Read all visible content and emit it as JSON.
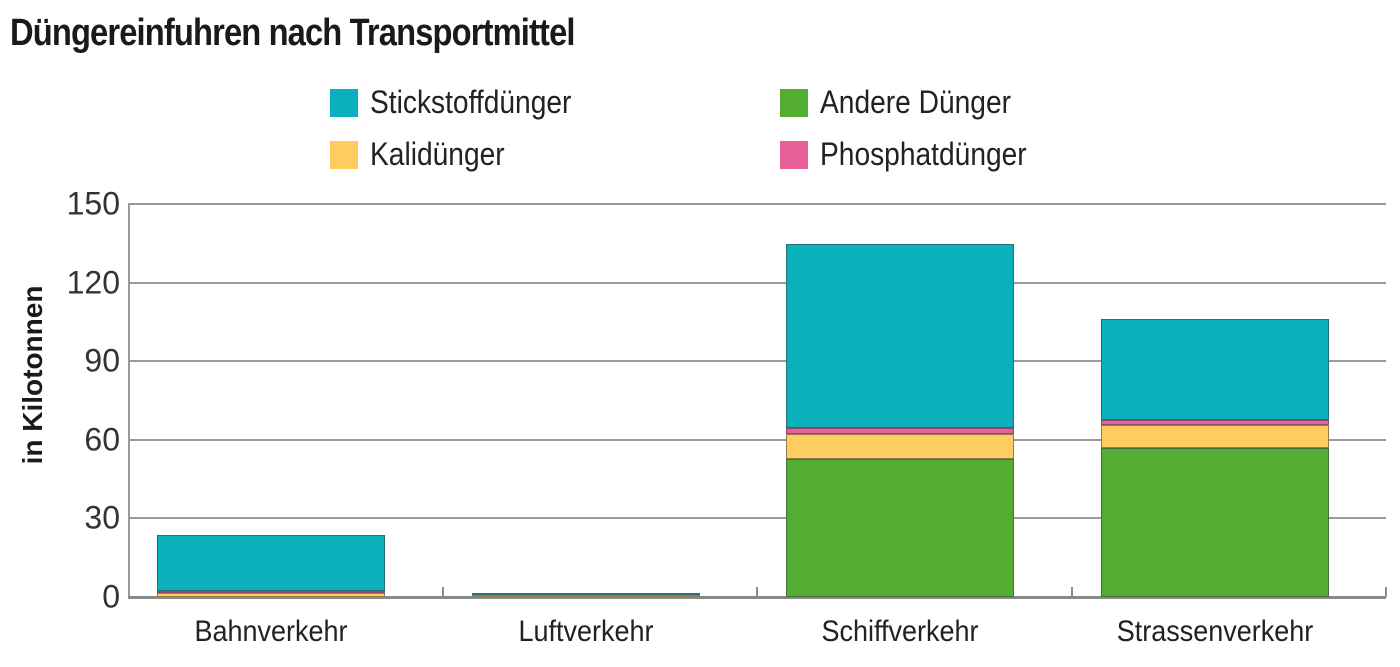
{
  "chart_data": {
    "type": "bar",
    "stacked": true,
    "title": "Düngereinfuhren nach Transportmittel",
    "xlabel": "",
    "ylabel": "in Kilotonnen",
    "ylim": [
      0,
      150
    ],
    "yticks": [
      0,
      30,
      60,
      90,
      120,
      150
    ],
    "grid": true,
    "legend_position": "top",
    "categories": [
      "Bahnverkehr",
      "Luftverkehr",
      "Schiffverkehr",
      "Strassenverkehr"
    ],
    "series": [
      {
        "name": "Andere Dünger",
        "color": "#52ad32",
        "values": [
          0.0,
          0.0,
          52.7,
          56.9
        ]
      },
      {
        "name": "Kalidünger",
        "color": "#fdcd62",
        "values": [
          1.5,
          0.1,
          9.5,
          8.7
        ]
      },
      {
        "name": "Phosphatdünger",
        "color": "#e8609a",
        "values": [
          0.1,
          0.0,
          2.3,
          2.0
        ]
      },
      {
        "name": "Stickstoffdünger",
        "color": "#0bb0bb",
        "values": [
          21.3,
          0.1,
          70.2,
          38.5
        ]
      }
    ]
  },
  "title": "Düngereinfuhren nach Transportmittel",
  "ylabel": "in Kilotonnen",
  "legend": [
    {
      "label": "Stickstoffdünger",
      "color": "#0bb0bb"
    },
    {
      "label": "Andere Dünger",
      "color": "#52ad32"
    },
    {
      "label": "Kalidünger",
      "color": "#fdcd62"
    },
    {
      "label": "Phosphatdünger",
      "color": "#e8609a"
    }
  ],
  "yticks": [
    "0",
    "30",
    "60",
    "90",
    "120",
    "150"
  ],
  "xlabels": [
    "Bahnverkehr",
    "Luftverkehr",
    "Schiffverkehr",
    "Strassenverkehr"
  ]
}
